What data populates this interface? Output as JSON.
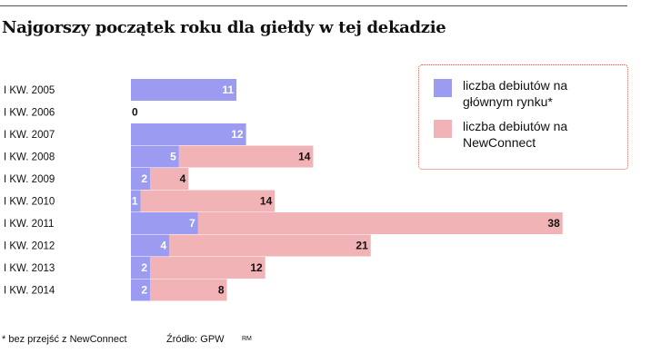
{
  "title": "Najgorszy początek roku dla giełdy w tej dekadzie",
  "legend": {
    "items": [
      {
        "label": "liczba debiutów na głównym rynku*",
        "color": "#9b9bf2"
      },
      {
        "label": "liczba debiutów na NewConnect",
        "color": "#f1b3b5"
      }
    ]
  },
  "footnote": "* bez przejść z NewConnect",
  "source": "Źródło: GPW",
  "initials": "RM",
  "chart_data": {
    "type": "bar",
    "orientation": "horizontal",
    "categories": [
      "I KW. 2005",
      "I KW. 2006",
      "I KW. 2007",
      "I KW. 2008",
      "I KW. 2009",
      "I KW. 2010",
      "I KW. 2011",
      "I KW. 2012",
      "I KW. 2013",
      "I KW. 2014"
    ],
    "series": [
      {
        "name": "liczba debiutów na głównym rynku*",
        "color": "#9b9bf2",
        "values": [
          11,
          0,
          12,
          5,
          2,
          1,
          7,
          4,
          2,
          2
        ]
      },
      {
        "name": "liczba debiutów na NewConnect",
        "color": "#f1b3b5",
        "values": [
          null,
          null,
          null,
          14,
          4,
          14,
          38,
          21,
          12,
          8
        ]
      }
    ]
  }
}
